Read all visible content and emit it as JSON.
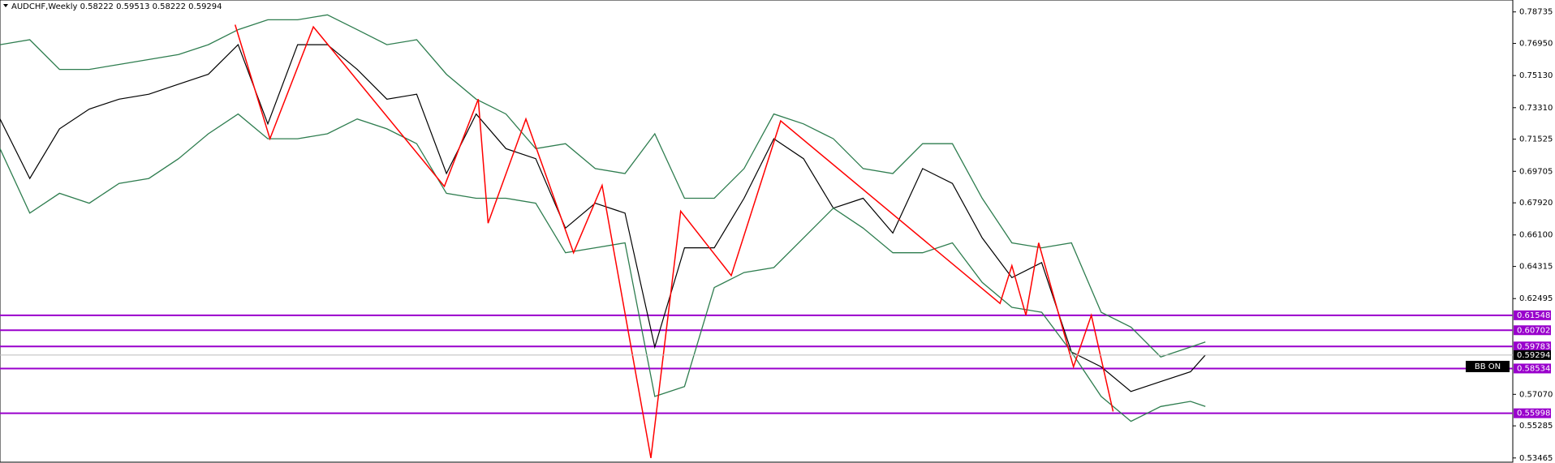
{
  "chart_data": {
    "type": "line",
    "title": "AUDCHF,Weekly  0.58222 0.59513 0.58222 0.59294",
    "button": "BB ON",
    "x": [
      0,
      1,
      2,
      3,
      4,
      5,
      6,
      7,
      8,
      9,
      10,
      11,
      12,
      13,
      14,
      15,
      16,
      17,
      18,
      19,
      20,
      21,
      22,
      23,
      24,
      25,
      26,
      27,
      28,
      29,
      30,
      31,
      32,
      33,
      34,
      35,
      36,
      37,
      38,
      39,
      40,
      40.5
    ],
    "xlim": [
      0,
      50.83
    ],
    "ylim": [
      0.5318,
      0.7941
    ],
    "yticks": [
      0.78735,
      {
        "value": 0.7695,
        "label": "0.76950"
      },
      {
        "value": 0.7513,
        "label": "0.75130"
      },
      {
        "value": 0.7331,
        "label": "0.73310"
      },
      0.71525,
      0.69705,
      {
        "value": 0.6792,
        "label": "0.67920"
      },
      {
        "value": 0.661,
        "label": "0.66100"
      },
      0.64315,
      0.62495,
      {
        "value": 0.5707,
        "label": "0.57070"
      },
      0.55285,
      0.53465
    ],
    "series": [
      {
        "name": "Close",
        "color": "#000000",
        "values": [
          0.7267,
          0.693,
          0.7211,
          0.7323,
          0.7379,
          0.7407,
          0.7464,
          0.752,
          0.7688,
          0.7239,
          0.7688,
          0.7688,
          0.7548,
          0.7379,
          0.7407,
          0.6958,
          0.7295,
          0.7099,
          0.7042,
          0.6649,
          0.679,
          0.6734,
          0.5975,
          0.6537,
          0.6537,
          0.6818,
          0.7155,
          0.7042,
          0.6762,
          0.6818,
          0.6621,
          0.6986,
          0.6902,
          0.6593,
          0.6368,
          0.6453,
          0.5947,
          0.5863,
          0.5723,
          0.5779,
          0.5835,
          0.593
        ]
      },
      {
        "name": "Upper",
        "color": "#2e7d4f",
        "values": [
          0.7688,
          0.7716,
          0.7548,
          0.7548,
          0.7576,
          0.7604,
          0.7632,
          0.7688,
          0.7773,
          0.7829,
          0.7829,
          0.7857,
          0.7773,
          0.7688,
          0.7716,
          0.752,
          0.7379,
          0.7295,
          0.7099,
          0.7127,
          0.6986,
          0.6958,
          0.7183,
          0.6818,
          0.6818,
          0.6986,
          0.7295,
          0.7239,
          0.7155,
          0.6986,
          0.6958,
          0.7127,
          0.7127,
          0.6818,
          0.6565,
          0.6537,
          0.6565,
          0.6172,
          0.6088,
          0.5919,
          0.5975,
          0.6004
        ]
      },
      {
        "name": "Lower",
        "color": "#2e7d4f",
        "values": [
          0.7099,
          0.6734,
          0.6846,
          0.679,
          0.6902,
          0.693,
          0.7042,
          0.7183,
          0.7295,
          0.7155,
          0.7155,
          0.7183,
          0.7267,
          0.7211,
          0.7127,
          0.6846,
          0.6818,
          0.6818,
          0.679,
          0.6509,
          0.6537,
          0.6565,
          0.5695,
          0.5751,
          0.6312,
          0.6397,
          0.6425,
          0.6593,
          0.6762,
          0.6649,
          0.6509,
          0.6509,
          0.6565,
          0.6341,
          0.62,
          0.6172,
          0.5947,
          0.5695,
          0.5554,
          0.5638,
          0.5667,
          0.5638
        ]
      }
    ],
    "zigzag": {
      "color": "#ff0000",
      "x": [
        7.9,
        9.07,
        10.53,
        14.93,
        16.07,
        16.4,
        17.67,
        19.27,
        20.23,
        21.87,
        22.87,
        24.57,
        26.23,
        33.6,
        34,
        34.47,
        34.9,
        36.07,
        36.67,
        37.4
      ],
      "values": [
        0.7801,
        0.7155,
        0.7789,
        0.6885,
        0.7379,
        0.6677,
        0.7267,
        0.6509,
        0.6891,
        0.5346,
        0.6745,
        0.638,
        0.7256,
        0.6222,
        0.6436,
        0.6155,
        0.6565,
        0.5863,
        0.6155,
        0.561
      ]
    },
    "levels": {
      "color": "#9900cc",
      "values": [
        0.61548,
        0.60702,
        0.59783,
        0.58534,
        0.55998
      ]
    },
    "bid": 0.59294
  }
}
